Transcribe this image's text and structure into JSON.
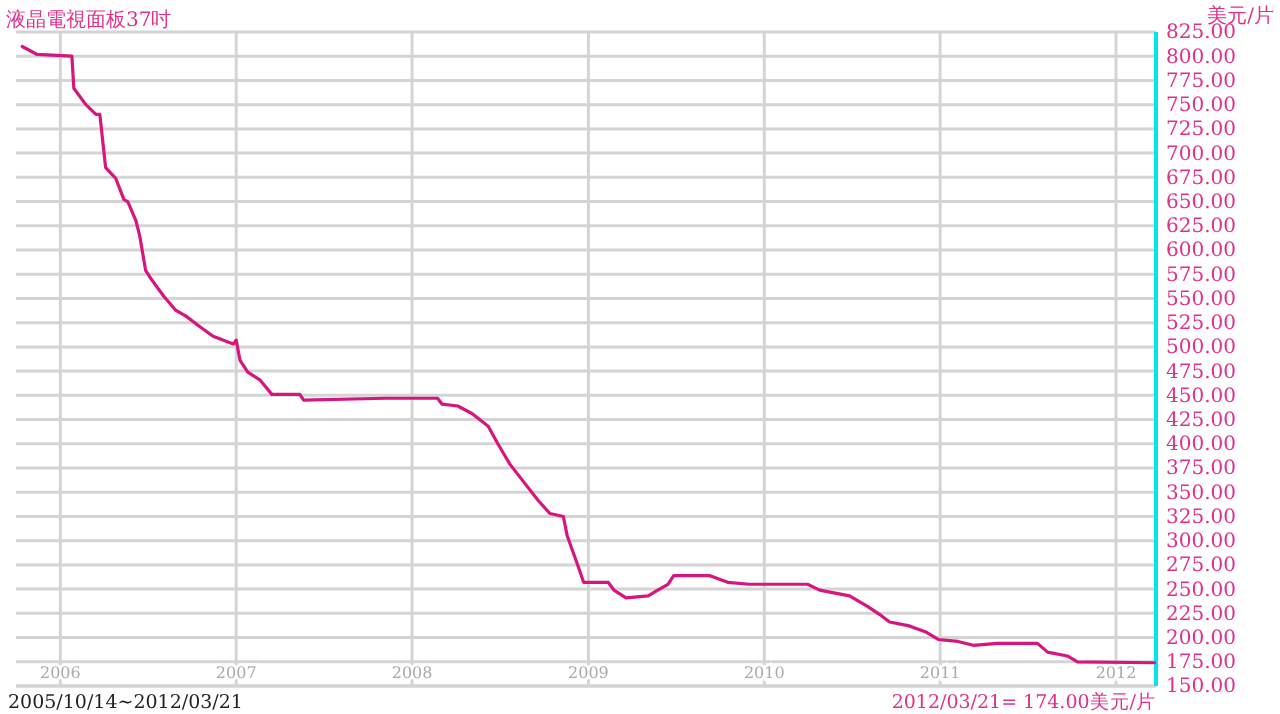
{
  "chart_data": {
    "type": "line",
    "title": "液晶電視面板37吋",
    "ylabel": "美元/片",
    "annotations": [
      "2005/10/14~2012/03/21",
      "2012/03/21= 174.00美元/片"
    ],
    "x": [
      "2005-10-14",
      "2005-11-13",
      "2006-01-25",
      "2006-01-29",
      "2006-02-23",
      "2006-03-16",
      "2006-03-24",
      "2006-04-05",
      "2006-04-26",
      "2006-05-13",
      "2006-05-21",
      "2006-06-07",
      "2006-06-15",
      "2006-06-27",
      "2006-07-10",
      "2006-08-04",
      "2006-08-28",
      "2006-09-18",
      "2006-10-17",
      "2006-11-14",
      "2006-12-26",
      "2007-01-01",
      "2007-01-09",
      "2007-01-25",
      "2007-02-19",
      "2007-03-16",
      "2007-05-13",
      "2007-05-21",
      "2007-11-06",
      "2008-02-23",
      "2008-03-03",
      "2008-04-05",
      "2008-05-05",
      "2008-06-07",
      "2008-06-27",
      "2008-07-22",
      "2008-08-16",
      "2008-09-18",
      "2008-10-13",
      "2008-11-10",
      "2008-11-18",
      "2008-12-09",
      "2008-12-22",
      "2009-02-11",
      "2009-02-23",
      "2009-03-20",
      "2009-05-05",
      "2009-05-25",
      "2009-06-15",
      "2009-06-27",
      "2009-09-09",
      "2009-10-17",
      "2009-12-01",
      "2010-04-01",
      "2010-04-26",
      "2010-06-27",
      "2010-08-04",
      "2010-08-28",
      "2010-09-18",
      "2010-10-29",
      "2010-12-01",
      "2010-12-28",
      "2011-02-07",
      "2011-03-11",
      "2011-04-30",
      "2011-07-22",
      "2011-08-12",
      "2011-09-22",
      "2011-10-13",
      "2012-03-21"
    ],
    "series": [
      {
        "color": "#d6157f",
        "values": [
          810,
          802,
          800,
          767,
          750,
          740,
          740,
          685,
          674,
          652,
          650,
          630,
          614,
          579,
          569,
          552,
          538,
          532,
          521,
          511,
          503,
          507,
          486,
          474,
          466,
          451,
          451,
          445,
          447,
          447,
          441,
          439,
          431,
          418,
          400,
          379,
          363,
          342,
          328,
          325,
          305,
          276,
          257,
          257,
          249,
          241,
          243,
          249,
          255,
          264,
          264,
          257,
          255,
          255,
          249,
          243,
          232,
          224,
          216,
          212,
          206,
          198,
          196,
          192,
          194,
          194,
          185,
          181,
          175,
          174
        ]
      }
    ],
    "xlim": [
      "2005-10-01",
      "2012-03-24"
    ],
    "xticks": [
      {
        "value": "2006-01-01",
        "label": "2006"
      },
      {
        "value": "2007-01-01",
        "label": "2007"
      },
      {
        "value": "2008-01-01",
        "label": "2008"
      },
      {
        "value": "2009-01-01",
        "label": "2009"
      },
      {
        "value": "2010-01-01",
        "label": "2010"
      },
      {
        "value": "2011-01-01",
        "label": "2011"
      },
      {
        "value": "2012-01-01",
        "label": "2012"
      }
    ],
    "ylim": [
      150,
      825
    ],
    "yticks": [
      {
        "value": 150,
        "label": "150.00"
      },
      {
        "value": 175,
        "label": "175.00"
      },
      {
        "value": 200,
        "label": "200.00"
      },
      {
        "value": 225,
        "label": "225.00"
      },
      {
        "value": 250,
        "label": "250.00"
      },
      {
        "value": 275,
        "label": "275.00"
      },
      {
        "value": 300,
        "label": "300.00"
      },
      {
        "value": 325,
        "label": "325.00"
      },
      {
        "value": 350,
        "label": "350.00"
      },
      {
        "value": 375,
        "label": "375.00"
      },
      {
        "value": 400,
        "label": "400.00"
      },
      {
        "value": 425,
        "label": "425.00"
      },
      {
        "value": 450,
        "label": "450.00"
      },
      {
        "value": 475,
        "label": "475.00"
      },
      {
        "value": 500,
        "label": "500.00"
      },
      {
        "value": 525,
        "label": "525.00"
      },
      {
        "value": 550,
        "label": "550.00"
      },
      {
        "value": 575,
        "label": "575.00"
      },
      {
        "value": 600,
        "label": "600.00"
      },
      {
        "value": 625,
        "label": "625.00"
      },
      {
        "value": 650,
        "label": "650.00"
      },
      {
        "value": 675,
        "label": "675.00"
      },
      {
        "value": 700,
        "label": "700.00"
      },
      {
        "value": 725,
        "label": "725.00"
      },
      {
        "value": 750,
        "label": "750.00"
      },
      {
        "value": 775,
        "label": "775.00"
      },
      {
        "value": 800,
        "label": "800.00"
      },
      {
        "value": 825,
        "label": "825.00"
      }
    ],
    "grid": true
  }
}
